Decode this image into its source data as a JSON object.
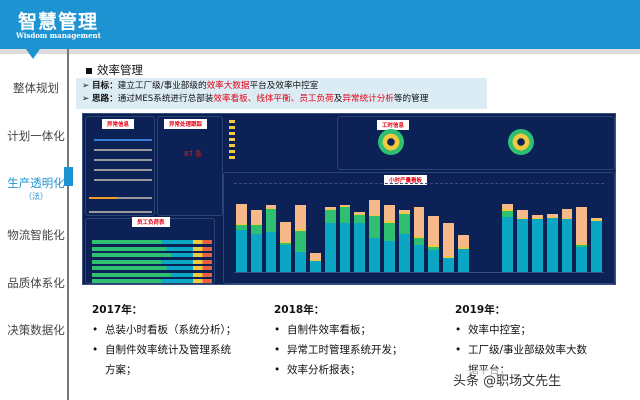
{
  "header": {
    "title": "智慧管理",
    "subtitle": "Wisdom management"
  },
  "sidebar": {
    "items": [
      {
        "label": "整体规划"
      },
      {
        "label": "计划一体化"
      },
      {
        "label": "生产透明化",
        "sub": "（法）",
        "active": true
      },
      {
        "label": "物流智能化"
      },
      {
        "label": "品质体系化"
      },
      {
        "label": "决策数据化"
      }
    ]
  },
  "section": {
    "title": "效率管理",
    "goal": {
      "label": "目标：",
      "pre": "建立工厂级/事业部级的",
      "hl": "效率大数据",
      "post": "平台及效率中控室"
    },
    "approach": {
      "label": "思路：",
      "pre": "通过MES系统进行总部装",
      "hl1": "效率看板、线体平衡、员工负荷",
      "mid": "及",
      "hl2": "异常统计分析",
      "post": "等的管理"
    }
  },
  "dashboard": {
    "panels": {
      "p1": "异常信息",
      "p2": "异常处理跟踪",
      "p3": "员工负荷表",
      "p4": "工时信息",
      "p5": "小时产量看板"
    },
    "count_value": "87 条",
    "colors": {
      "teal": "#0aa6c4",
      "green": "#2fbf71",
      "peach": "#f7b98a",
      "yellow": "#f1c93e",
      "bg": "#0b2050"
    },
    "hourly_bars": [
      [
        47,
        5,
        22
      ],
      [
        42,
        10,
        15
      ],
      [
        44,
        26,
        3
      ],
      [
        30,
        2,
        22
      ],
      [
        22,
        24,
        27
      ],
      [
        12,
        0,
        8
      ],
      [
        55,
        14,
        2
      ],
      [
        55,
        17,
        1
      ],
      [
        55,
        8,
        2
      ],
      [
        38,
        24,
        16
      ],
      [
        35,
        20,
        18
      ],
      [
        42,
        23,
        2
      ],
      [
        30,
        8,
        33
      ],
      [
        25,
        3,
        33
      ],
      [
        16,
        0,
        37
      ],
      [
        26,
        0,
        14
      ],
      [
        0,
        0,
        0
      ],
      [
        0,
        0,
        0
      ],
      [
        61,
        7,
        6
      ],
      [
        59,
        0,
        8
      ],
      [
        59,
        0,
        3
      ],
      [
        60,
        0,
        3
      ],
      [
        59,
        0,
        9
      ],
      [
        28,
        2,
        41
      ],
      [
        57,
        0,
        2
      ]
    ]
  },
  "plans": [
    {
      "year": "2017年：",
      "items": [
        "总装小时看板（系统分析）；",
        "自制件效率统计及管理系统方案；"
      ]
    },
    {
      "year": "2018年：",
      "items": [
        "自制件效率看板；",
        "异常工时管理系统开发；",
        "效率分析报表；"
      ]
    },
    {
      "year": "2019年：",
      "items": [
        "效率中控室；",
        "工厂级/事业部级效率大数据平台；"
      ]
    }
  ],
  "watermark": "头条 @职场文先生"
}
